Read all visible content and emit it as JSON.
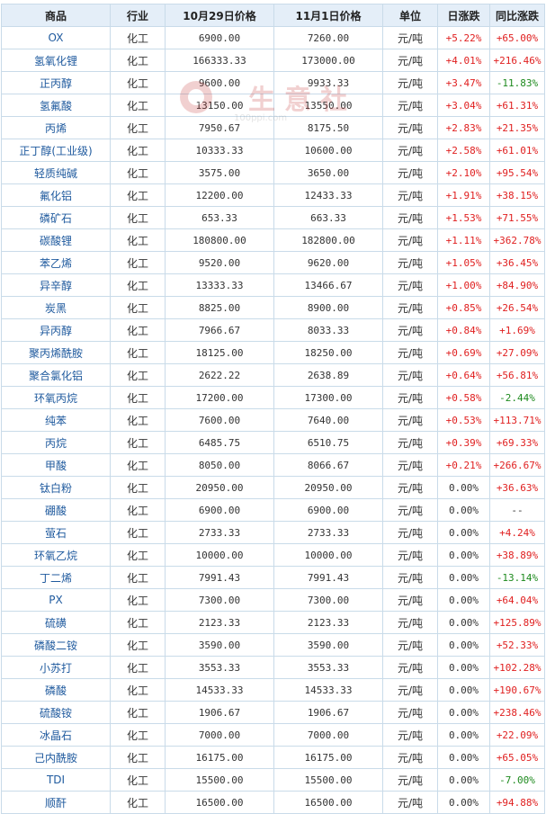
{
  "headers": [
    "商品",
    "行业",
    "10月29日价格",
    "11月1日价格",
    "单位",
    "日涨跌",
    "同比涨跌"
  ],
  "watermark": {
    "text": "生意社",
    "url": "100ppi.com"
  },
  "rows": [
    {
      "name": "OX",
      "industry": "化工",
      "p1": "6900.00",
      "p2": "7260.00",
      "unit": "元/吨",
      "daily": "+5.22%",
      "daily_dir": "up",
      "yoy": "+65.00%",
      "yoy_dir": "up"
    },
    {
      "name": "氢氧化锂",
      "industry": "化工",
      "p1": "166333.33",
      "p2": "173000.00",
      "unit": "元/吨",
      "daily": "+4.01%",
      "daily_dir": "up",
      "yoy": "+216.46%",
      "yoy_dir": "up"
    },
    {
      "name": "正丙醇",
      "industry": "化工",
      "p1": "9600.00",
      "p2": "9933.33",
      "unit": "元/吨",
      "daily": "+3.47%",
      "daily_dir": "up",
      "yoy": "-11.83%",
      "yoy_dir": "down"
    },
    {
      "name": "氢氟酸",
      "industry": "化工",
      "p1": "13150.00",
      "p2": "13550.00",
      "unit": "元/吨",
      "daily": "+3.04%",
      "daily_dir": "up",
      "yoy": "+61.31%",
      "yoy_dir": "up"
    },
    {
      "name": "丙烯",
      "industry": "化工",
      "p1": "7950.67",
      "p2": "8175.50",
      "unit": "元/吨",
      "daily": "+2.83%",
      "daily_dir": "up",
      "yoy": "+21.35%",
      "yoy_dir": "up"
    },
    {
      "name": "正丁醇(工业级)",
      "industry": "化工",
      "p1": "10333.33",
      "p2": "10600.00",
      "unit": "元/吨",
      "daily": "+2.58%",
      "daily_dir": "up",
      "yoy": "+61.01%",
      "yoy_dir": "up"
    },
    {
      "name": "轻质纯碱",
      "industry": "化工",
      "p1": "3575.00",
      "p2": "3650.00",
      "unit": "元/吨",
      "daily": "+2.10%",
      "daily_dir": "up",
      "yoy": "+95.54%",
      "yoy_dir": "up"
    },
    {
      "name": "氟化铝",
      "industry": "化工",
      "p1": "12200.00",
      "p2": "12433.33",
      "unit": "元/吨",
      "daily": "+1.91%",
      "daily_dir": "up",
      "yoy": "+38.15%",
      "yoy_dir": "up"
    },
    {
      "name": "磷矿石",
      "industry": "化工",
      "p1": "653.33",
      "p2": "663.33",
      "unit": "元/吨",
      "daily": "+1.53%",
      "daily_dir": "up",
      "yoy": "+71.55%",
      "yoy_dir": "up"
    },
    {
      "name": "碳酸锂",
      "industry": "化工",
      "p1": "180800.00",
      "p2": "182800.00",
      "unit": "元/吨",
      "daily": "+1.11%",
      "daily_dir": "up",
      "yoy": "+362.78%",
      "yoy_dir": "up"
    },
    {
      "name": "苯乙烯",
      "industry": "化工",
      "p1": "9520.00",
      "p2": "9620.00",
      "unit": "元/吨",
      "daily": "+1.05%",
      "daily_dir": "up",
      "yoy": "+36.45%",
      "yoy_dir": "up"
    },
    {
      "name": "异辛醇",
      "industry": "化工",
      "p1": "13333.33",
      "p2": "13466.67",
      "unit": "元/吨",
      "daily": "+1.00%",
      "daily_dir": "up",
      "yoy": "+84.90%",
      "yoy_dir": "up"
    },
    {
      "name": "炭黑",
      "industry": "化工",
      "p1": "8825.00",
      "p2": "8900.00",
      "unit": "元/吨",
      "daily": "+0.85%",
      "daily_dir": "up",
      "yoy": "+26.54%",
      "yoy_dir": "up"
    },
    {
      "name": "异丙醇",
      "industry": "化工",
      "p1": "7966.67",
      "p2": "8033.33",
      "unit": "元/吨",
      "daily": "+0.84%",
      "daily_dir": "up",
      "yoy": "+1.69%",
      "yoy_dir": "up"
    },
    {
      "name": "聚丙烯酰胺",
      "industry": "化工",
      "p1": "18125.00",
      "p2": "18250.00",
      "unit": "元/吨",
      "daily": "+0.69%",
      "daily_dir": "up",
      "yoy": "+27.09%",
      "yoy_dir": "up"
    },
    {
      "name": "聚合氯化铝",
      "industry": "化工",
      "p1": "2622.22",
      "p2": "2638.89",
      "unit": "元/吨",
      "daily": "+0.64%",
      "daily_dir": "up",
      "yoy": "+56.81%",
      "yoy_dir": "up"
    },
    {
      "name": "环氧丙烷",
      "industry": "化工",
      "p1": "17200.00",
      "p2": "17300.00",
      "unit": "元/吨",
      "daily": "+0.58%",
      "daily_dir": "up",
      "yoy": "-2.44%",
      "yoy_dir": "down"
    },
    {
      "name": "纯苯",
      "industry": "化工",
      "p1": "7600.00",
      "p2": "7640.00",
      "unit": "元/吨",
      "daily": "+0.53%",
      "daily_dir": "up",
      "yoy": "+113.71%",
      "yoy_dir": "up"
    },
    {
      "name": "丙烷",
      "industry": "化工",
      "p1": "6485.75",
      "p2": "6510.75",
      "unit": "元/吨",
      "daily": "+0.39%",
      "daily_dir": "up",
      "yoy": "+69.33%",
      "yoy_dir": "up"
    },
    {
      "name": "甲酸",
      "industry": "化工",
      "p1": "8050.00",
      "p2": "8066.67",
      "unit": "元/吨",
      "daily": "+0.21%",
      "daily_dir": "up",
      "yoy": "+266.67%",
      "yoy_dir": "up"
    },
    {
      "name": "钛白粉",
      "industry": "化工",
      "p1": "20950.00",
      "p2": "20950.00",
      "unit": "元/吨",
      "daily": "0.00%",
      "daily_dir": "flat",
      "yoy": "+36.63%",
      "yoy_dir": "up"
    },
    {
      "name": "硼酸",
      "industry": "化工",
      "p1": "6900.00",
      "p2": "6900.00",
      "unit": "元/吨",
      "daily": "0.00%",
      "daily_dir": "flat",
      "yoy": "--",
      "yoy_dir": "flat"
    },
    {
      "name": "萤石",
      "industry": "化工",
      "p1": "2733.33",
      "p2": "2733.33",
      "unit": "元/吨",
      "daily": "0.00%",
      "daily_dir": "flat",
      "yoy": "+4.24%",
      "yoy_dir": "up"
    },
    {
      "name": "环氧乙烷",
      "industry": "化工",
      "p1": "10000.00",
      "p2": "10000.00",
      "unit": "元/吨",
      "daily": "0.00%",
      "daily_dir": "flat",
      "yoy": "+38.89%",
      "yoy_dir": "up"
    },
    {
      "name": "丁二烯",
      "industry": "化工",
      "p1": "7991.43",
      "p2": "7991.43",
      "unit": "元/吨",
      "daily": "0.00%",
      "daily_dir": "flat",
      "yoy": "-13.14%",
      "yoy_dir": "down"
    },
    {
      "name": "PX",
      "industry": "化工",
      "p1": "7300.00",
      "p2": "7300.00",
      "unit": "元/吨",
      "daily": "0.00%",
      "daily_dir": "flat",
      "yoy": "+64.04%",
      "yoy_dir": "up"
    },
    {
      "name": "硫磺",
      "industry": "化工",
      "p1": "2123.33",
      "p2": "2123.33",
      "unit": "元/吨",
      "daily": "0.00%",
      "daily_dir": "flat",
      "yoy": "+125.89%",
      "yoy_dir": "up"
    },
    {
      "name": "磷酸二铵",
      "industry": "化工",
      "p1": "3590.00",
      "p2": "3590.00",
      "unit": "元/吨",
      "daily": "0.00%",
      "daily_dir": "flat",
      "yoy": "+52.33%",
      "yoy_dir": "up"
    },
    {
      "name": "小苏打",
      "industry": "化工",
      "p1": "3553.33",
      "p2": "3553.33",
      "unit": "元/吨",
      "daily": "0.00%",
      "daily_dir": "flat",
      "yoy": "+102.28%",
      "yoy_dir": "up"
    },
    {
      "name": "磷酸",
      "industry": "化工",
      "p1": "14533.33",
      "p2": "14533.33",
      "unit": "元/吨",
      "daily": "0.00%",
      "daily_dir": "flat",
      "yoy": "+190.67%",
      "yoy_dir": "up"
    },
    {
      "name": "硫酸铵",
      "industry": "化工",
      "p1": "1906.67",
      "p2": "1906.67",
      "unit": "元/吨",
      "daily": "0.00%",
      "daily_dir": "flat",
      "yoy": "+238.46%",
      "yoy_dir": "up"
    },
    {
      "name": "冰晶石",
      "industry": "化工",
      "p1": "7000.00",
      "p2": "7000.00",
      "unit": "元/吨",
      "daily": "0.00%",
      "daily_dir": "flat",
      "yoy": "+22.09%",
      "yoy_dir": "up"
    },
    {
      "name": "己内酰胺",
      "industry": "化工",
      "p1": "16175.00",
      "p2": "16175.00",
      "unit": "元/吨",
      "daily": "0.00%",
      "daily_dir": "flat",
      "yoy": "+65.05%",
      "yoy_dir": "up"
    },
    {
      "name": "TDI",
      "industry": "化工",
      "p1": "15500.00",
      "p2": "15500.00",
      "unit": "元/吨",
      "daily": "0.00%",
      "daily_dir": "flat",
      "yoy": "-7.00%",
      "yoy_dir": "down"
    },
    {
      "name": "顺酐",
      "industry": "化工",
      "p1": "16500.00",
      "p2": "16500.00",
      "unit": "元/吨",
      "daily": "0.00%",
      "daily_dir": "flat",
      "yoy": "+94.88%",
      "yoy_dir": "up"
    }
  ]
}
